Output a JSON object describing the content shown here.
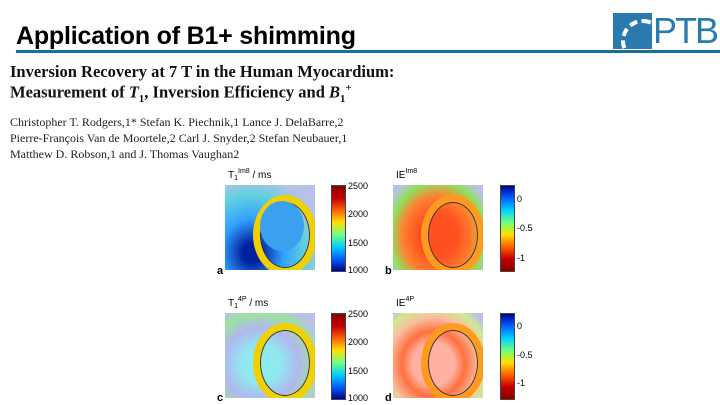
{
  "slide": {
    "title": "Application of B1+ shimming",
    "logo": "PTB"
  },
  "paper": {
    "title_line1": "Inversion Recovery at 7 T in the Human Myocardium:",
    "title_line2_prefix": "Measurement of ",
    "t1": "T",
    "t1_sub": "1",
    "title_line2_mid": ", Inversion Efficiency and ",
    "b1": "B",
    "b1_sub": "1",
    "b1_sup": "+",
    "authors_line1": "Christopher T. Rodgers,1* Stefan K. Piechnik,1 Lance J. DelaBarre,2",
    "authors_line2": "Pierre-François Van de Moortele,2 Carl J. Snyder,2 Stefan Neubauer,1",
    "authors_line3": "Matthew D. Robson,1 and J. Thomas Vaughan2"
  },
  "figure": {
    "panels": [
      {
        "letter": "a",
        "label": "T",
        "sub": "1",
        "sup": "Im8",
        "unit": " / ms",
        "ticks": [
          "2500",
          "2000",
          "1500",
          "1000"
        ]
      },
      {
        "letter": "b",
        "label": "IE",
        "sup": "Im8",
        "ticks": [
          "0",
          "-0.5",
          "-1"
        ]
      },
      {
        "letter": "c",
        "label": "T",
        "sub": "1",
        "sup": "4P",
        "unit": " / ms",
        "ticks": [
          "2500",
          "2000",
          "1500",
          "1000"
        ]
      },
      {
        "letter": "d",
        "label": "IE",
        "sup": "4P",
        "ticks": [
          "0",
          "-0.5",
          "-1"
        ]
      }
    ]
  }
}
